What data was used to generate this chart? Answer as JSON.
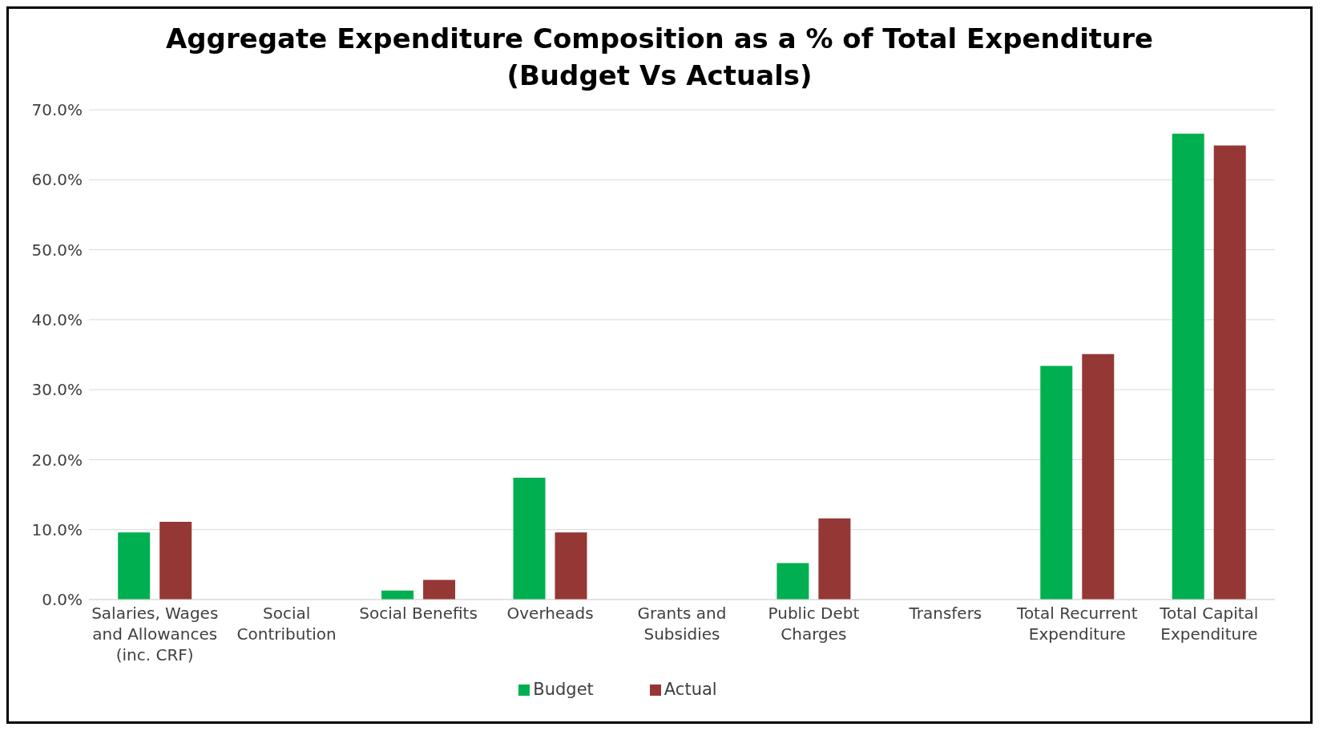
{
  "chart_data": {
    "type": "bar",
    "title": "Aggregate Expenditure Composition as a % of Total Expenditure",
    "subtitle": "(Budget Vs Actuals)",
    "categories": [
      "Salaries, Wages and Allowances (inc. CRF)",
      "Social Contribution",
      "Social Benefits",
      "Overheads",
      "Grants and Subsidies",
      "Public Debt Charges",
      "Transfers",
      "Total Recurrent Expenditure",
      "Total Capital Expenditure"
    ],
    "series": [
      {
        "name": "Budget",
        "color": "#00b050",
        "values": [
          9.6,
          0,
          1.3,
          17.4,
          0,
          5.2,
          0,
          33.4,
          66.6
        ]
      },
      {
        "name": "Actual",
        "color": "#953735",
        "values": [
          11.1,
          0,
          2.8,
          9.6,
          0,
          11.6,
          0,
          35.1,
          64.9
        ]
      }
    ],
    "ylim": [
      0,
      70
    ],
    "yticks": [
      {
        "value": 0,
        "label": "0.0%"
      },
      {
        "value": 10,
        "label": "10.0%"
      },
      {
        "value": 20,
        "label": "20.0%"
      },
      {
        "value": 30,
        "label": "30.0%"
      },
      {
        "value": 40,
        "label": "40.0%"
      },
      {
        "value": 50,
        "label": "50.0%"
      },
      {
        "value": 60,
        "label": "60.0%"
      },
      {
        "value": 70,
        "label": "70.0%"
      }
    ],
    "grid": "y",
    "legend": "bottom"
  }
}
